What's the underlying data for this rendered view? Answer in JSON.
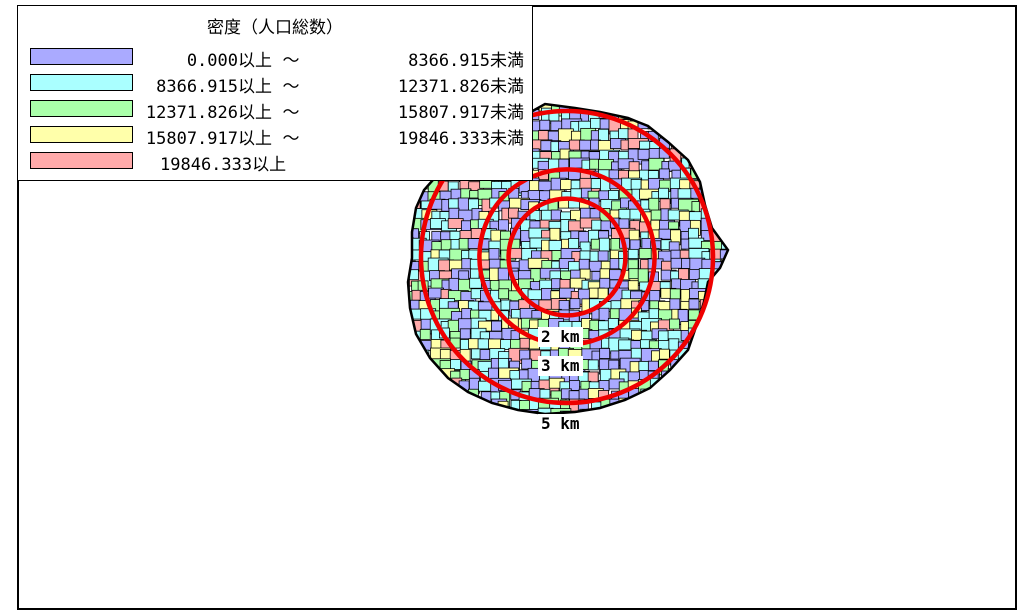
{
  "legend": {
    "title": "密度（人口総数）",
    "sep": "～",
    "rows": [
      {
        "low": "0.000以上",
        "high": "8366.915未満",
        "color": "#aaaaff"
      },
      {
        "low": "8366.915以上",
        "high": "12371.826未満",
        "color": "#aaffff"
      },
      {
        "low": "12371.826以上",
        "high": "15807.917未満",
        "color": "#aaffaa"
      },
      {
        "low": "15807.917以上",
        "high": "19846.333未満",
        "color": "#ffffaa"
      },
      {
        "low": "19846.333以上",
        "high": "",
        "color": "#ffaaaa"
      }
    ]
  },
  "rings": [
    {
      "label": "2 km",
      "km": 2
    },
    {
      "label": "3 km",
      "km": 3
    },
    {
      "label": "5 km",
      "km": 5
    }
  ],
  "colors": {
    "ring": "#ee0000",
    "boundary": "#000000"
  }
}
